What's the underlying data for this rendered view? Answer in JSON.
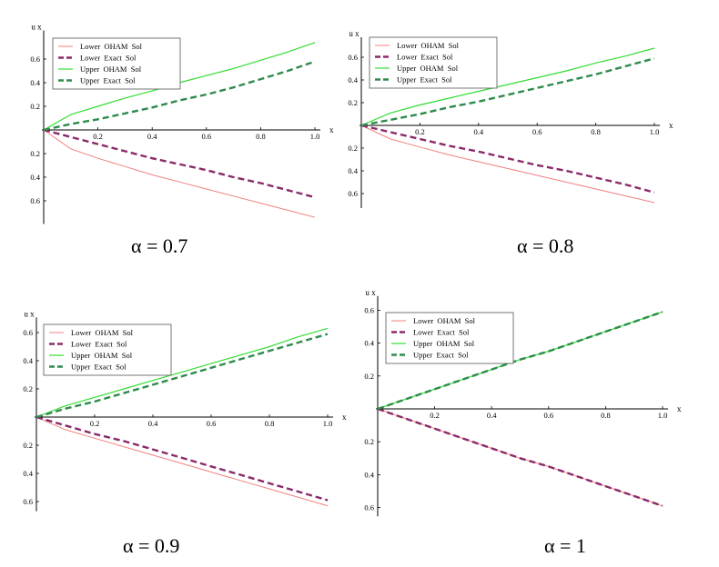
{
  "colors": {
    "lower_oham": "#f08080",
    "lower_exact": "#8b2a6a",
    "upper_oham": "#33dd33",
    "upper_exact": "#2e8b4c",
    "axis": "#000000"
  },
  "legend_labels": [
    "Lower  OHAM  Sol",
    "Lower  Exact  Sol",
    "Upper  OHAM  Sol",
    "Upper  Exact  Sol"
  ],
  "chart_data": [
    {
      "type": "line",
      "caption": "α = 0.7",
      "ylabel": "u x",
      "xlabel": "x",
      "xticks": [
        "0.2",
        "0.4",
        "0.6",
        "0.8",
        "1.0"
      ],
      "yticks_up": [
        "0.2",
        "0.4",
        "0.6"
      ],
      "yticks_down": [
        "0.2",
        "0.4",
        "0.6"
      ],
      "xlim": [
        0,
        1.0
      ],
      "ylim": [
        -0.75,
        0.75
      ],
      "legend_position": "top-left",
      "series": [
        {
          "name": "Lower  OHAM  Sol",
          "style": "solid",
          "x": [
            0,
            0.1,
            0.2,
            0.3,
            0.4,
            0.5,
            0.6,
            0.7,
            0.8,
            0.9,
            1.0
          ],
          "y": [
            0,
            -0.16,
            -0.24,
            -0.31,
            -0.38,
            -0.44,
            -0.5,
            -0.56,
            -0.62,
            -0.68,
            -0.74
          ]
        },
        {
          "name": "Lower  Exact  Sol",
          "style": "dashed",
          "x": [
            0,
            0.1,
            0.2,
            0.3,
            0.4,
            0.5,
            0.6,
            0.7,
            0.8,
            0.9,
            1.0
          ],
          "y": [
            0,
            -0.06,
            -0.12,
            -0.18,
            -0.24,
            -0.29,
            -0.34,
            -0.4,
            -0.45,
            -0.51,
            -0.57
          ]
        },
        {
          "name": "Upper  OHAM  Sol",
          "style": "solid",
          "x": [
            0,
            0.1,
            0.2,
            0.3,
            0.4,
            0.5,
            0.6,
            0.7,
            0.8,
            0.9,
            1.0
          ],
          "y": [
            0,
            0.13,
            0.2,
            0.27,
            0.33,
            0.4,
            0.46,
            0.52,
            0.59,
            0.66,
            0.74
          ]
        },
        {
          "name": "Upper  Exact  Sol",
          "style": "dashed",
          "x": [
            0,
            0.1,
            0.2,
            0.3,
            0.4,
            0.5,
            0.6,
            0.7,
            0.8,
            0.9,
            1.0
          ],
          "y": [
            0,
            0.05,
            0.09,
            0.14,
            0.19,
            0.25,
            0.3,
            0.36,
            0.43,
            0.5,
            0.58
          ]
        }
      ]
    },
    {
      "type": "line",
      "caption": "α = 0.8",
      "ylabel": "u x",
      "xlabel": "x",
      "xticks": [
        "0.2",
        "0.4",
        "0.6",
        "0.8",
        "1.0"
      ],
      "yticks_up": [
        "0.2",
        "0.4",
        "0.6"
      ],
      "yticks_down": [
        "0.2",
        "0.4",
        "0.6"
      ],
      "xlim": [
        0,
        1.0
      ],
      "ylim": [
        -0.68,
        0.68
      ],
      "legend_position": "top-left",
      "series": [
        {
          "name": "Lower  OHAM  Sol",
          "style": "solid",
          "x": [
            0,
            0.1,
            0.2,
            0.3,
            0.4,
            0.5,
            0.6,
            0.7,
            0.8,
            0.9,
            1.0
          ],
          "y": [
            0,
            -0.12,
            -0.19,
            -0.26,
            -0.32,
            -0.38,
            -0.44,
            -0.5,
            -0.56,
            -0.62,
            -0.68
          ]
        },
        {
          "name": "Lower  Exact  Sol",
          "style": "dashed",
          "x": [
            0,
            0.1,
            0.2,
            0.3,
            0.4,
            0.5,
            0.6,
            0.7,
            0.8,
            0.9,
            1.0
          ],
          "y": [
            0,
            -0.06,
            -0.12,
            -0.18,
            -0.23,
            -0.29,
            -0.35,
            -0.4,
            -0.46,
            -0.52,
            -0.59
          ]
        },
        {
          "name": "Upper  OHAM  Sol",
          "style": "solid",
          "x": [
            0,
            0.1,
            0.2,
            0.3,
            0.4,
            0.5,
            0.6,
            0.7,
            0.8,
            0.9,
            1.0
          ],
          "y": [
            0,
            0.11,
            0.18,
            0.24,
            0.3,
            0.36,
            0.42,
            0.48,
            0.55,
            0.61,
            0.68
          ]
        },
        {
          "name": "Upper  Exact  Sol",
          "style": "dashed",
          "x": [
            0,
            0.1,
            0.2,
            0.3,
            0.4,
            0.5,
            0.6,
            0.7,
            0.8,
            0.9,
            1.0
          ],
          "y": [
            0,
            0.05,
            0.1,
            0.16,
            0.21,
            0.27,
            0.33,
            0.39,
            0.45,
            0.52,
            0.59
          ]
        }
      ]
    },
    {
      "type": "line",
      "caption": "α = 0.9",
      "ylabel": "u x",
      "xlabel": "x",
      "xticks": [
        "0.2",
        "0.4",
        "0.6",
        "0.8",
        "1.0"
      ],
      "yticks_up": [
        "0.2",
        "0.4",
        "0.6"
      ],
      "yticks_down": [
        "0.2",
        "0.4",
        "0.6"
      ],
      "xlim": [
        0,
        1.0
      ],
      "ylim": [
        -0.63,
        0.63
      ],
      "legend_position": "top-left",
      "series": [
        {
          "name": "Lower  OHAM  Sol",
          "style": "solid",
          "x": [
            0,
            0.1,
            0.2,
            0.3,
            0.4,
            0.5,
            0.6,
            0.7,
            0.8,
            0.9,
            1.0
          ],
          "y": [
            0,
            -0.09,
            -0.15,
            -0.21,
            -0.27,
            -0.33,
            -0.39,
            -0.45,
            -0.51,
            -0.57,
            -0.63
          ]
        },
        {
          "name": "Lower  Exact  Sol",
          "style": "dashed",
          "x": [
            0,
            0.1,
            0.2,
            0.3,
            0.4,
            0.5,
            0.6,
            0.7,
            0.8,
            0.9,
            1.0
          ],
          "y": [
            0,
            -0.06,
            -0.12,
            -0.17,
            -0.23,
            -0.29,
            -0.35,
            -0.41,
            -0.47,
            -0.53,
            -0.59
          ]
        },
        {
          "name": "Upper  OHAM  Sol",
          "style": "solid",
          "x": [
            0,
            0.1,
            0.2,
            0.3,
            0.4,
            0.5,
            0.6,
            0.7,
            0.8,
            0.9,
            1.0
          ],
          "y": [
            0,
            0.08,
            0.14,
            0.2,
            0.26,
            0.32,
            0.38,
            0.44,
            0.5,
            0.57,
            0.63
          ]
        },
        {
          "name": "Upper  Exact  Sol",
          "style": "dashed",
          "x": [
            0,
            0.1,
            0.2,
            0.3,
            0.4,
            0.5,
            0.6,
            0.7,
            0.8,
            0.9,
            1.0
          ],
          "y": [
            0,
            0.06,
            0.11,
            0.17,
            0.23,
            0.29,
            0.35,
            0.41,
            0.47,
            0.53,
            0.59
          ]
        }
      ]
    },
    {
      "type": "line",
      "caption": "α = 1",
      "ylabel": "u x",
      "xlabel": "x",
      "xticks": [
        "0.2",
        "0.4",
        "0.6",
        "0.8",
        "1.0"
      ],
      "yticks_up": [
        "0.2",
        "0.4",
        "0.6"
      ],
      "yticks_down": [
        "0.2",
        "0.4",
        "0.6"
      ],
      "xlim": [
        0,
        1.0
      ],
      "ylim": [
        -0.62,
        0.62
      ],
      "legend_position": "top-left",
      "series": [
        {
          "name": "Lower  OHAM  Sol",
          "style": "solid",
          "x": [
            0,
            0.1,
            0.2,
            0.3,
            0.4,
            0.5,
            0.6,
            0.7,
            0.8,
            0.9,
            1.0
          ],
          "y": [
            0,
            -0.06,
            -0.12,
            -0.18,
            -0.24,
            -0.3,
            -0.35,
            -0.41,
            -0.47,
            -0.53,
            -0.59
          ]
        },
        {
          "name": "Lower  Exact  Sol",
          "style": "dashed",
          "x": [
            0,
            0.1,
            0.2,
            0.3,
            0.4,
            0.5,
            0.6,
            0.7,
            0.8,
            0.9,
            1.0
          ],
          "y": [
            0,
            -0.06,
            -0.12,
            -0.18,
            -0.24,
            -0.3,
            -0.35,
            -0.41,
            -0.47,
            -0.53,
            -0.59
          ]
        },
        {
          "name": "Upper  OHAM  Sol",
          "style": "solid",
          "x": [
            0,
            0.1,
            0.2,
            0.3,
            0.4,
            0.5,
            0.6,
            0.7,
            0.8,
            0.9,
            1.0
          ],
          "y": [
            0,
            0.06,
            0.12,
            0.18,
            0.24,
            0.3,
            0.35,
            0.41,
            0.47,
            0.53,
            0.59
          ]
        },
        {
          "name": "Upper  Exact  Sol",
          "style": "dashed",
          "x": [
            0,
            0.1,
            0.2,
            0.3,
            0.4,
            0.5,
            0.6,
            0.7,
            0.8,
            0.9,
            1.0
          ],
          "y": [
            0,
            0.06,
            0.12,
            0.18,
            0.24,
            0.3,
            0.35,
            0.41,
            0.47,
            0.53,
            0.59
          ]
        }
      ]
    }
  ]
}
